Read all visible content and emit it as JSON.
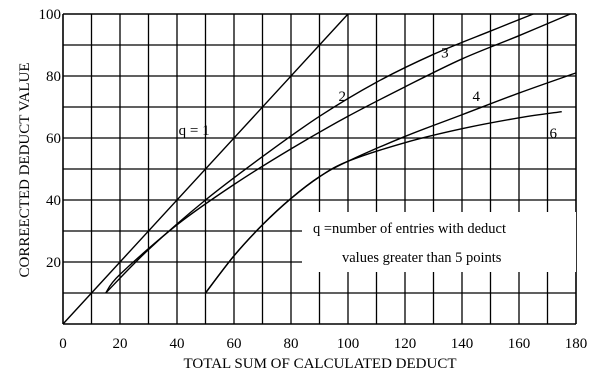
{
  "chart_data": {
    "type": "line",
    "title": "",
    "xlabel": "TOTAL SUM OF CALCULATED DEDUCT",
    "ylabel": "CORREECTED DEDUCT VALUE",
    "xlim": [
      0,
      180
    ],
    "ylim": [
      0,
      100
    ],
    "grid": true,
    "x_tick_labels": [
      {
        "value": 0,
        "text": "0"
      },
      {
        "value": 20,
        "text": "20"
      },
      {
        "value": 40,
        "text": "40"
      },
      {
        "value": 60,
        "text": "60"
      },
      {
        "value": 80,
        "text": "80"
      },
      {
        "value": 100,
        "text": "100"
      },
      {
        "value": 120,
        "text": "120"
      },
      {
        "value": 140,
        "text": "140"
      },
      {
        "value": 160,
        "text": "160"
      },
      {
        "value": 180,
        "text": "180"
      }
    ],
    "y_tick_labels": [
      {
        "value": 20,
        "text": "20"
      },
      {
        "value": 40,
        "text": "40"
      },
      {
        "value": 60,
        "text": "60"
      },
      {
        "value": 80,
        "text": "80"
      },
      {
        "value": 100,
        "text": "100"
      }
    ],
    "series": [
      {
        "name": "q = 1",
        "points": [
          [
            0,
            0
          ],
          [
            100,
            100
          ]
        ]
      },
      {
        "name": "2",
        "points": [
          [
            15,
            10
          ],
          [
            30,
            24
          ],
          [
            50,
            40
          ],
          [
            70,
            54
          ],
          [
            90,
            67
          ],
          [
            110,
            78
          ],
          [
            130,
            87
          ],
          [
            150,
            94.5
          ],
          [
            165,
            100
          ]
        ]
      },
      {
        "name": "3",
        "points": [
          [
            15,
            10
          ],
          [
            20,
            16
          ],
          [
            40,
            32
          ],
          [
            60,
            45
          ],
          [
            80,
            56.5
          ],
          [
            100,
            67
          ],
          [
            120,
            76.5
          ],
          [
            140,
            85.5
          ],
          [
            160,
            93
          ],
          [
            178,
            100
          ]
        ]
      },
      {
        "name": "4",
        "points": [
          [
            50,
            10
          ],
          [
            60,
            22
          ],
          [
            70,
            32
          ],
          [
            80,
            40.5
          ],
          [
            90,
            47.5
          ],
          [
            100,
            52.5
          ],
          [
            120,
            60.5
          ],
          [
            140,
            67.5
          ],
          [
            160,
            74.5
          ],
          [
            180,
            81
          ]
        ]
      },
      {
        "name": "6",
        "points": [
          [
            50,
            10
          ],
          [
            60,
            22
          ],
          [
            70,
            32
          ],
          [
            80,
            40.5
          ],
          [
            90,
            47.5
          ],
          [
            100,
            52.5
          ],
          [
            120,
            58.5
          ],
          [
            140,
            63
          ],
          [
            160,
            66.5
          ],
          [
            175,
            68.5
          ]
        ]
      }
    ],
    "series_labels": [
      {
        "text": "q  = 1",
        "x": 46,
        "y": 61
      },
      {
        "text": "2",
        "x": 98,
        "y": 72
      },
      {
        "text": "3",
        "x": 134,
        "y": 86
      },
      {
        "text": "4",
        "x": 145,
        "y": 72
      },
      {
        "text": "6",
        "x": 172,
        "y": 60
      }
    ],
    "annotation": {
      "lines": [
        "q =number of entries with deduct",
        "values greater than 5 points"
      ]
    }
  }
}
